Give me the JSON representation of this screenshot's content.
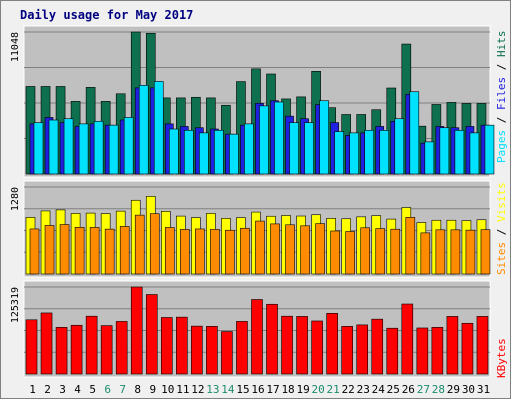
{
  "chart_data": {
    "type": "bar",
    "title": "Daily usage for May 2017",
    "days": [
      "1",
      "2",
      "3",
      "4",
      "5",
      "6",
      "7",
      "8",
      "9",
      "10",
      "11",
      "12",
      "13",
      "14",
      "15",
      "16",
      "17",
      "18",
      "19",
      "20",
      "21",
      "22",
      "23",
      "24",
      "25",
      "26",
      "27",
      "28",
      "29",
      "30",
      "31"
    ],
    "weekend_days": [
      "6",
      "7",
      "13",
      "14",
      "20",
      "21",
      "27",
      "28"
    ],
    "panels": [
      {
        "id": "top",
        "max_label": "11048",
        "ymax": 11048,
        "series": [
          {
            "name": "Hits",
            "color": "#0f7050",
            "values": [
              6810,
              6810,
              6810,
              5650,
              6740,
              5650,
              6240,
              11048,
              10950,
              5920,
              5920,
              5970,
              5920,
              5350,
              7190,
              8180,
              7780,
              5840,
              6000,
              7990,
              5160,
              4630,
              4630,
              5000,
              6690,
              10110,
              3720,
              5410,
              5570,
              5490,
              5490
            ]
          },
          {
            "name": "Files",
            "color": "#2020e0",
            "values": [
              3900,
              4400,
              4000,
              3700,
              3900,
              3800,
              4200,
              6700,
              6700,
              3900,
              3700,
              3600,
              3500,
              3100,
              3800,
              5500,
              5700,
              4500,
              4300,
              5400,
              4000,
              3000,
              3200,
              3700,
              4100,
              6200,
              2400,
              3700,
              3600,
              3700,
              3800
            ]
          },
          {
            "name": "Pages",
            "color": "#00e0ff",
            "values": [
              4000,
              4200,
              4300,
              3900,
              4100,
              3800,
              4400,
              6900,
              7200,
              3500,
              3400,
              3200,
              3400,
              3100,
              3900,
              5300,
              5600,
              4000,
              4000,
              5700,
              3300,
              3200,
              3400,
              3400,
              4300,
              6400,
              2500,
              3600,
              3400,
              3200,
              3800
            ]
          }
        ]
      },
      {
        "id": "mid",
        "max_label": "1280",
        "ymax": 1280,
        "series": [
          {
            "name": "Visits",
            "color": "#ffff00",
            "values": [
              833,
              928,
              943,
              891,
              896,
              889,
              925,
              1085,
              1142,
              922,
              852,
              830,
              892,
              819,
              830,
              911,
              850,
              861,
              853,
              872,
              819,
              813,
              841,
              859,
              808,
              978,
              758,
              791,
              791,
              786,
              798
            ]
          },
          {
            "name": "Sites",
            "color": "#ff8c00",
            "values": [
              663,
              714,
              728,
              687,
              685,
              660,
              700,
              866,
              887,
              684,
              656,
              663,
              656,
              644,
              673,
              779,
              737,
              724,
              709,
              741,
              633,
              625,
              680,
              668,
              659,
              833,
              605,
              650,
              650,
              645,
              652
            ]
          }
        ]
      },
      {
        "id": "bot",
        "max_label": "125319",
        "ymax": 125319,
        "series": [
          {
            "name": "KBytes",
            "color": "#ff0000",
            "values": [
              78070,
              87925,
              67223,
              70220,
              83262,
              69722,
              75714,
              125319,
              114486,
              81431,
              81907,
              68958,
              68645,
              61154,
              75751,
              107301,
              100474,
              83262,
              82931,
              76373,
              87424,
              68645,
              70724,
              78988,
              65957,
              100807,
              66290,
              67223,
              82931,
              73055,
              82931
            ]
          }
        ]
      }
    ],
    "colors": {
      "panel_bg": "#c0c0c0",
      "frame": "#ffffff",
      "outer_bg": "#f0f0f0",
      "title": "#000080",
      "weekday_label": "#000000",
      "weekend_label": "#1c8c6c"
    }
  }
}
